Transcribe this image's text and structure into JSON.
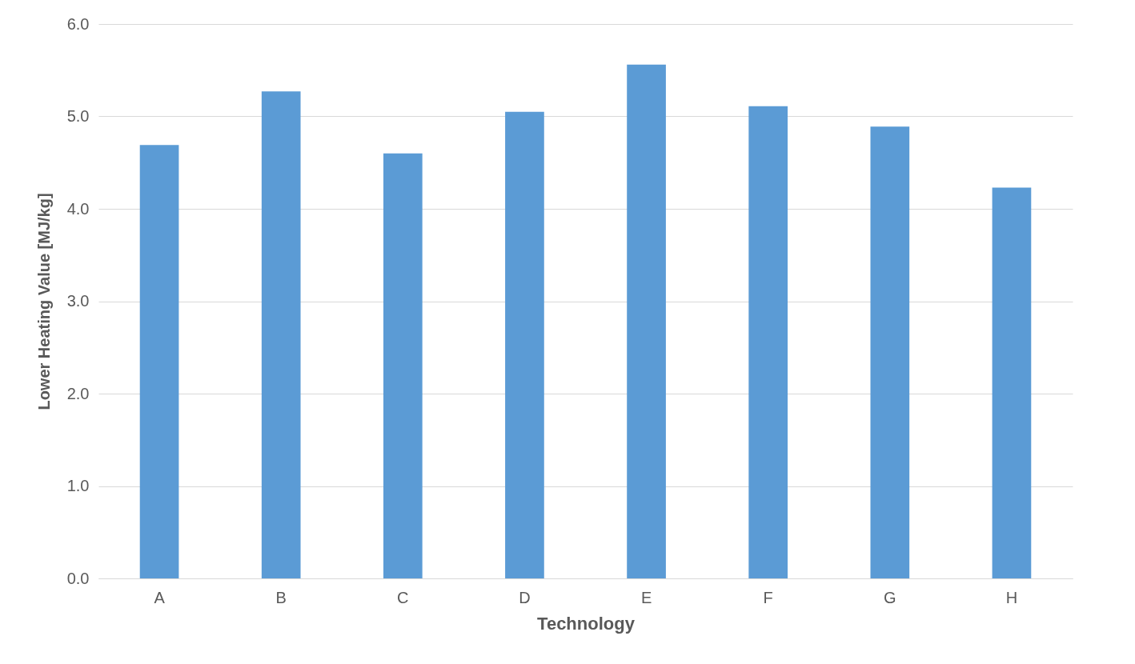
{
  "chart_data": {
    "type": "bar",
    "xlabel": "Technology",
    "ylabel": "Lower Heating Value [MJ/kg]",
    "categories": [
      "A",
      "B",
      "C",
      "D",
      "E",
      "F",
      "G",
      "H"
    ],
    "values": [
      4.69,
      5.27,
      4.6,
      5.05,
      5.56,
      5.11,
      4.89,
      4.23
    ],
    "color": "#5b9bd5",
    "ylim": [
      0,
      6
    ],
    "yticks": [
      {
        "value": 0,
        "label": "0.0"
      },
      {
        "value": 1,
        "label": "1.0"
      },
      {
        "value": 2,
        "label": "2.0"
      },
      {
        "value": 3,
        "label": "3.0"
      },
      {
        "value": 4,
        "label": "4.0"
      },
      {
        "value": 5,
        "label": "5.0"
      },
      {
        "value": 6,
        "label": "6.0"
      }
    ],
    "grid": "y"
  }
}
